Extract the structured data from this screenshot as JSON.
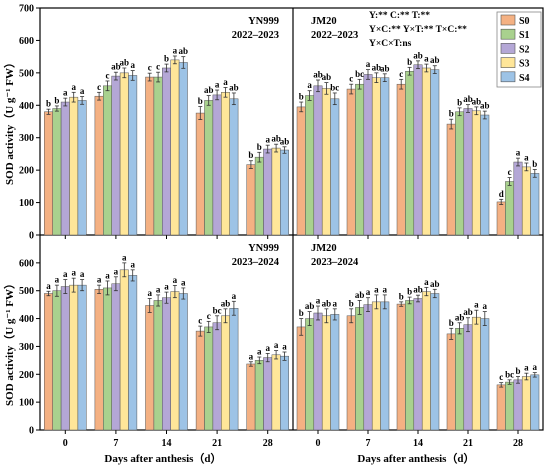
{
  "chart_data": {
    "type": "bar",
    "ylabel": "SOD activity（U g⁻¹ FW）",
    "xlabel": "Days after anthesis（d）",
    "categories": [
      "0",
      "7",
      "14",
      "21",
      "28"
    ],
    "ylim": [
      0,
      700
    ],
    "yticks": [
      "0",
      "100",
      "200",
      "300",
      "400",
      "500",
      "600",
      "700"
    ],
    "legend": {
      "placement": "top-right",
      "entries": [
        {
          "name": "S0",
          "color": "#F4B183"
        },
        {
          "name": "S1",
          "color": "#A9D18E"
        },
        {
          "name": "S2",
          "color": "#B4A7D6"
        },
        {
          "name": "S3",
          "color": "#FFE699"
        },
        {
          "name": "S4",
          "color": "#9DC3E6"
        }
      ]
    },
    "anova": [
      "Y:** C:** T:**",
      "Y×C:** Y×T:** T×C:**",
      "Y×C×T:ns"
    ],
    "panels": [
      {
        "cultivar": "YN999",
        "season": "2022–2023",
        "values": [
          [
            380,
            390,
            410,
            425,
            415
          ],
          [
            428,
            460,
            490,
            500,
            492
          ],
          [
            487,
            487,
            515,
            540,
            532
          ],
          [
            376,
            415,
            432,
            440,
            420
          ],
          [
            217,
            240,
            265,
            268,
            262
          ]
        ],
        "errors": [
          [
            8,
            8,
            12,
            15,
            12
          ],
          [
            12,
            15,
            12,
            15,
            15
          ],
          [
            12,
            15,
            12,
            12,
            18
          ],
          [
            20,
            15,
            15,
            15,
            18
          ],
          [
            12,
            15,
            12,
            12,
            10
          ]
        ],
        "letters": [
          [
            "b",
            "b",
            "a",
            "a",
            "a"
          ],
          [
            "c",
            "c",
            "ab",
            "ab",
            "a"
          ],
          [
            "c",
            "c",
            "b",
            "a",
            "ab"
          ],
          [
            "b",
            "ab",
            "a",
            "a",
            "ab"
          ],
          [
            "b",
            "b",
            "a",
            "ab",
            "ab"
          ]
        ]
      },
      {
        "cultivar": "JM20",
        "season": "2022–2023",
        "values": [
          [
            395,
            430,
            460,
            452,
            420
          ],
          [
            450,
            465,
            495,
            485,
            485
          ],
          [
            465,
            505,
            525,
            515,
            510
          ],
          [
            342,
            380,
            390,
            383,
            370
          ],
          [
            102,
            165,
            225,
            210,
            190
          ]
        ],
        "errors": [
          [
            15,
            15,
            18,
            18,
            18
          ],
          [
            15,
            15,
            15,
            15,
            12
          ],
          [
            15,
            12,
            12,
            12,
            12
          ],
          [
            15,
            12,
            12,
            12,
            12
          ],
          [
            8,
            12,
            12,
            12,
            12
          ]
        ],
        "letters": [
          [
            "b",
            "a",
            "ab",
            "ab",
            "bc"
          ],
          [
            "c",
            "bc",
            "a",
            "ab",
            "ab"
          ],
          [
            "c",
            "b",
            "ab",
            "a",
            "ab"
          ],
          [
            "b",
            "b",
            "ab",
            "ab",
            "ab"
          ],
          [
            "d",
            "c",
            "a",
            "a",
            "b"
          ]
        ]
      },
      {
        "cultivar": "YN999",
        "season": "2023–2024",
        "values": [
          [
            490,
            500,
            515,
            520,
            520
          ],
          [
            505,
            510,
            525,
            575,
            555
          ],
          [
            447,
            465,
            475,
            497,
            490
          ],
          [
            355,
            370,
            385,
            410,
            437
          ],
          [
            237,
            250,
            260,
            270,
            265
          ]
        ],
        "errors": [
          [
            8,
            20,
            25,
            25,
            20
          ],
          [
            15,
            25,
            25,
            25,
            20
          ],
          [
            25,
            20,
            20,
            22,
            20
          ],
          [
            18,
            20,
            25,
            25,
            25
          ],
          [
            8,
            12,
            15,
            15,
            15
          ]
        ],
        "letters": [
          [
            "a",
            "a",
            "a",
            "a",
            "a"
          ],
          [
            "a",
            "a",
            "a",
            "a",
            "a"
          ],
          [
            "a",
            "a",
            "a",
            "a",
            "a"
          ],
          [
            "c",
            "c",
            "bc",
            "ab",
            "a"
          ],
          [
            "a",
            "a",
            "a",
            "a",
            "a"
          ]
        ]
      },
      {
        "cultivar": "JM20",
        "season": "2023–2024",
        "values": [
          [
            370,
            400,
            420,
            410,
            415
          ],
          [
            410,
            440,
            450,
            460,
            460
          ],
          [
            452,
            465,
            472,
            497,
            490
          ],
          [
            345,
            365,
            378,
            405,
            400
          ],
          [
            162,
            172,
            180,
            192,
            198
          ]
        ],
        "errors": [
          [
            30,
            25,
            25,
            25,
            20
          ],
          [
            25,
            25,
            25,
            25,
            25
          ],
          [
            8,
            12,
            12,
            15,
            15
          ],
          [
            20,
            20,
            25,
            25,
            25
          ],
          [
            8,
            8,
            12,
            12,
            8
          ]
        ],
        "letters": [
          [
            "b",
            "ab",
            "a",
            "ab",
            "a"
          ],
          [
            "b",
            "ab",
            "a",
            "a",
            "a"
          ],
          [
            "b",
            "b",
            "ab",
            "a",
            "ab"
          ],
          [
            "b",
            "ab",
            "ab",
            "a",
            "a"
          ],
          [
            "c",
            "bc",
            "b",
            "a",
            "a"
          ]
        ]
      }
    ]
  }
}
